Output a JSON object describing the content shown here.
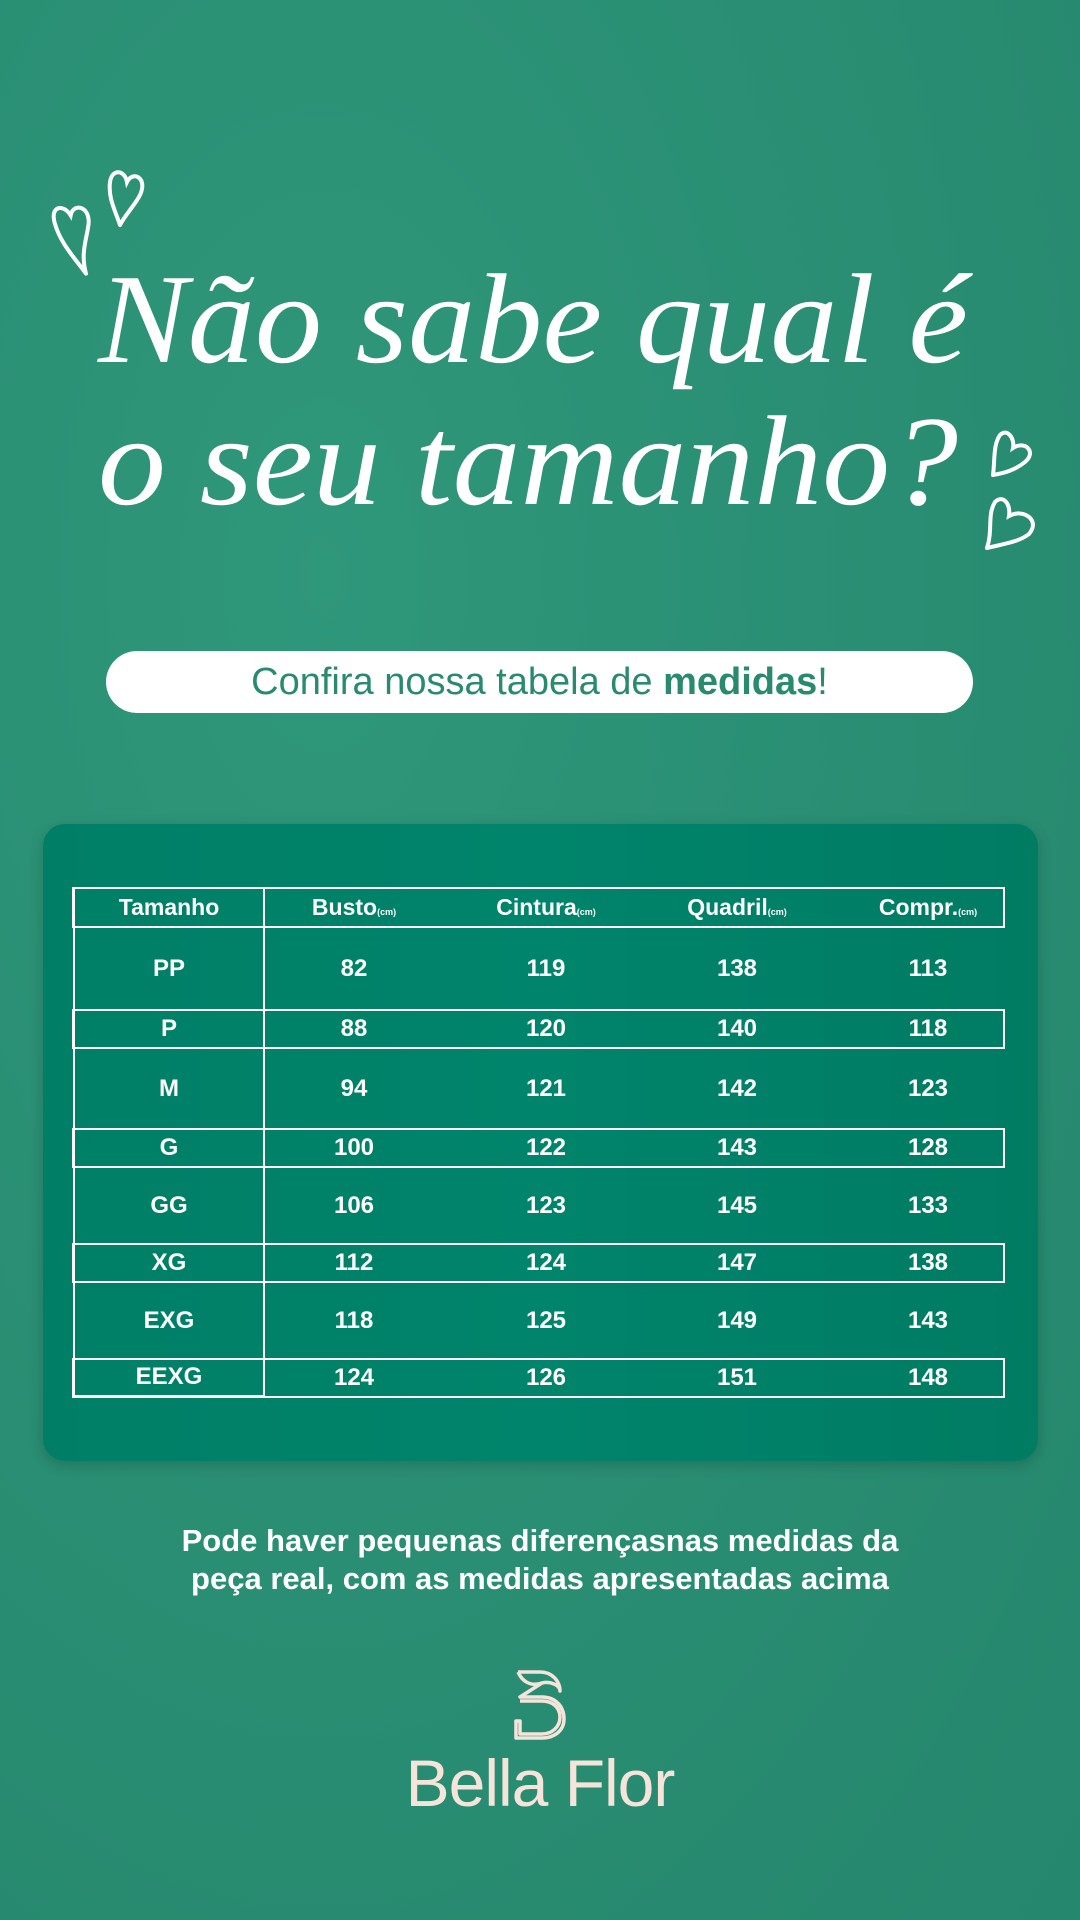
{
  "headline": {
    "line1": "Não sabe qual é",
    "line2": "o seu tamanho?"
  },
  "pill": {
    "text_regular": "Confira nossa tabela de ",
    "text_bold": "medidas",
    "text_end": "!"
  },
  "table": {
    "unit": "(cm)",
    "headers": [
      "Tamanho",
      "Busto",
      "Cintura",
      "Quadril",
      "Compr."
    ],
    "rows": [
      {
        "size": "PP",
        "busto": "82",
        "cintura": "119",
        "quadril": "138",
        "compr": "113"
      },
      {
        "size": "P",
        "busto": "88",
        "cintura": "120",
        "quadril": "140",
        "compr": "118"
      },
      {
        "size": "M",
        "busto": "94",
        "cintura": "121",
        "quadril": "142",
        "compr": "123"
      },
      {
        "size": "G",
        "busto": "100",
        "cintura": "122",
        "quadril": "143",
        "compr": "128"
      },
      {
        "size": "GG",
        "busto": "106",
        "cintura": "123",
        "quadril": "145",
        "compr": "133"
      },
      {
        "size": "XG",
        "busto": "112",
        "cintura": "124",
        "quadril": "147",
        "compr": "138"
      },
      {
        "size": "EXG",
        "busto": "118",
        "cintura": "125",
        "quadril": "149",
        "compr": "143"
      },
      {
        "size": "EEXG",
        "busto": "124",
        "cintura": "126",
        "quadril": "151",
        "compr": "148"
      }
    ]
  },
  "note": {
    "line1": "Pode haver pequenas diferençasnas medidas da",
    "line2": "peça real, com as medidas apresentadas acima"
  },
  "brand": {
    "name": "Bella Flor",
    "logo_icon": "b-leaf-monogram"
  },
  "colors": {
    "background": "#2a8f74",
    "card": "#00836a",
    "pill_text": "#2a8a6e",
    "brand": "#f6e4da"
  }
}
